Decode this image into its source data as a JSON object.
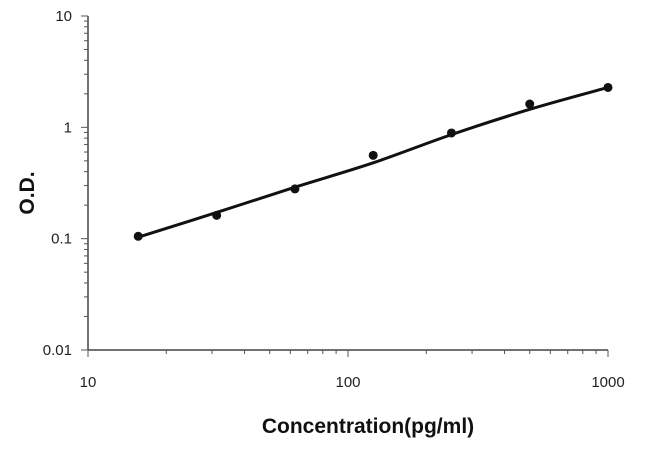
{
  "chart_data": {
    "type": "scatter",
    "title": "",
    "xlabel": "Concentration(pg/ml)",
    "ylabel": "O.D.",
    "x_scale": "log",
    "y_scale": "log",
    "xlim": [
      10,
      1000
    ],
    "ylim": [
      0.01,
      10
    ],
    "x_ticks": [
      10,
      100,
      1000
    ],
    "x_tick_labels": [
      "10",
      "100",
      "1000"
    ],
    "y_ticks": [
      0.01,
      0.1,
      1,
      10
    ],
    "y_tick_labels": [
      "0.01",
      "0.1",
      "1",
      "10"
    ],
    "grid": false,
    "legend": "none",
    "series": [
      {
        "x": [
          15.6,
          31.25,
          62.5,
          125,
          250,
          500,
          1000
        ],
        "y": [
          0.105,
          0.162,
          0.28,
          0.56,
          0.89,
          1.62,
          2.28
        ]
      }
    ],
    "fit_curve": {
      "x": [
        15.6,
        31.25,
        62.5,
        125,
        250,
        500,
        1000
      ],
      "y": [
        0.103,
        0.172,
        0.29,
        0.48,
        0.86,
        1.45,
        2.28
      ]
    },
    "colors": {
      "points": "#111111",
      "curve": "#111111",
      "axis": "#444444"
    }
  }
}
